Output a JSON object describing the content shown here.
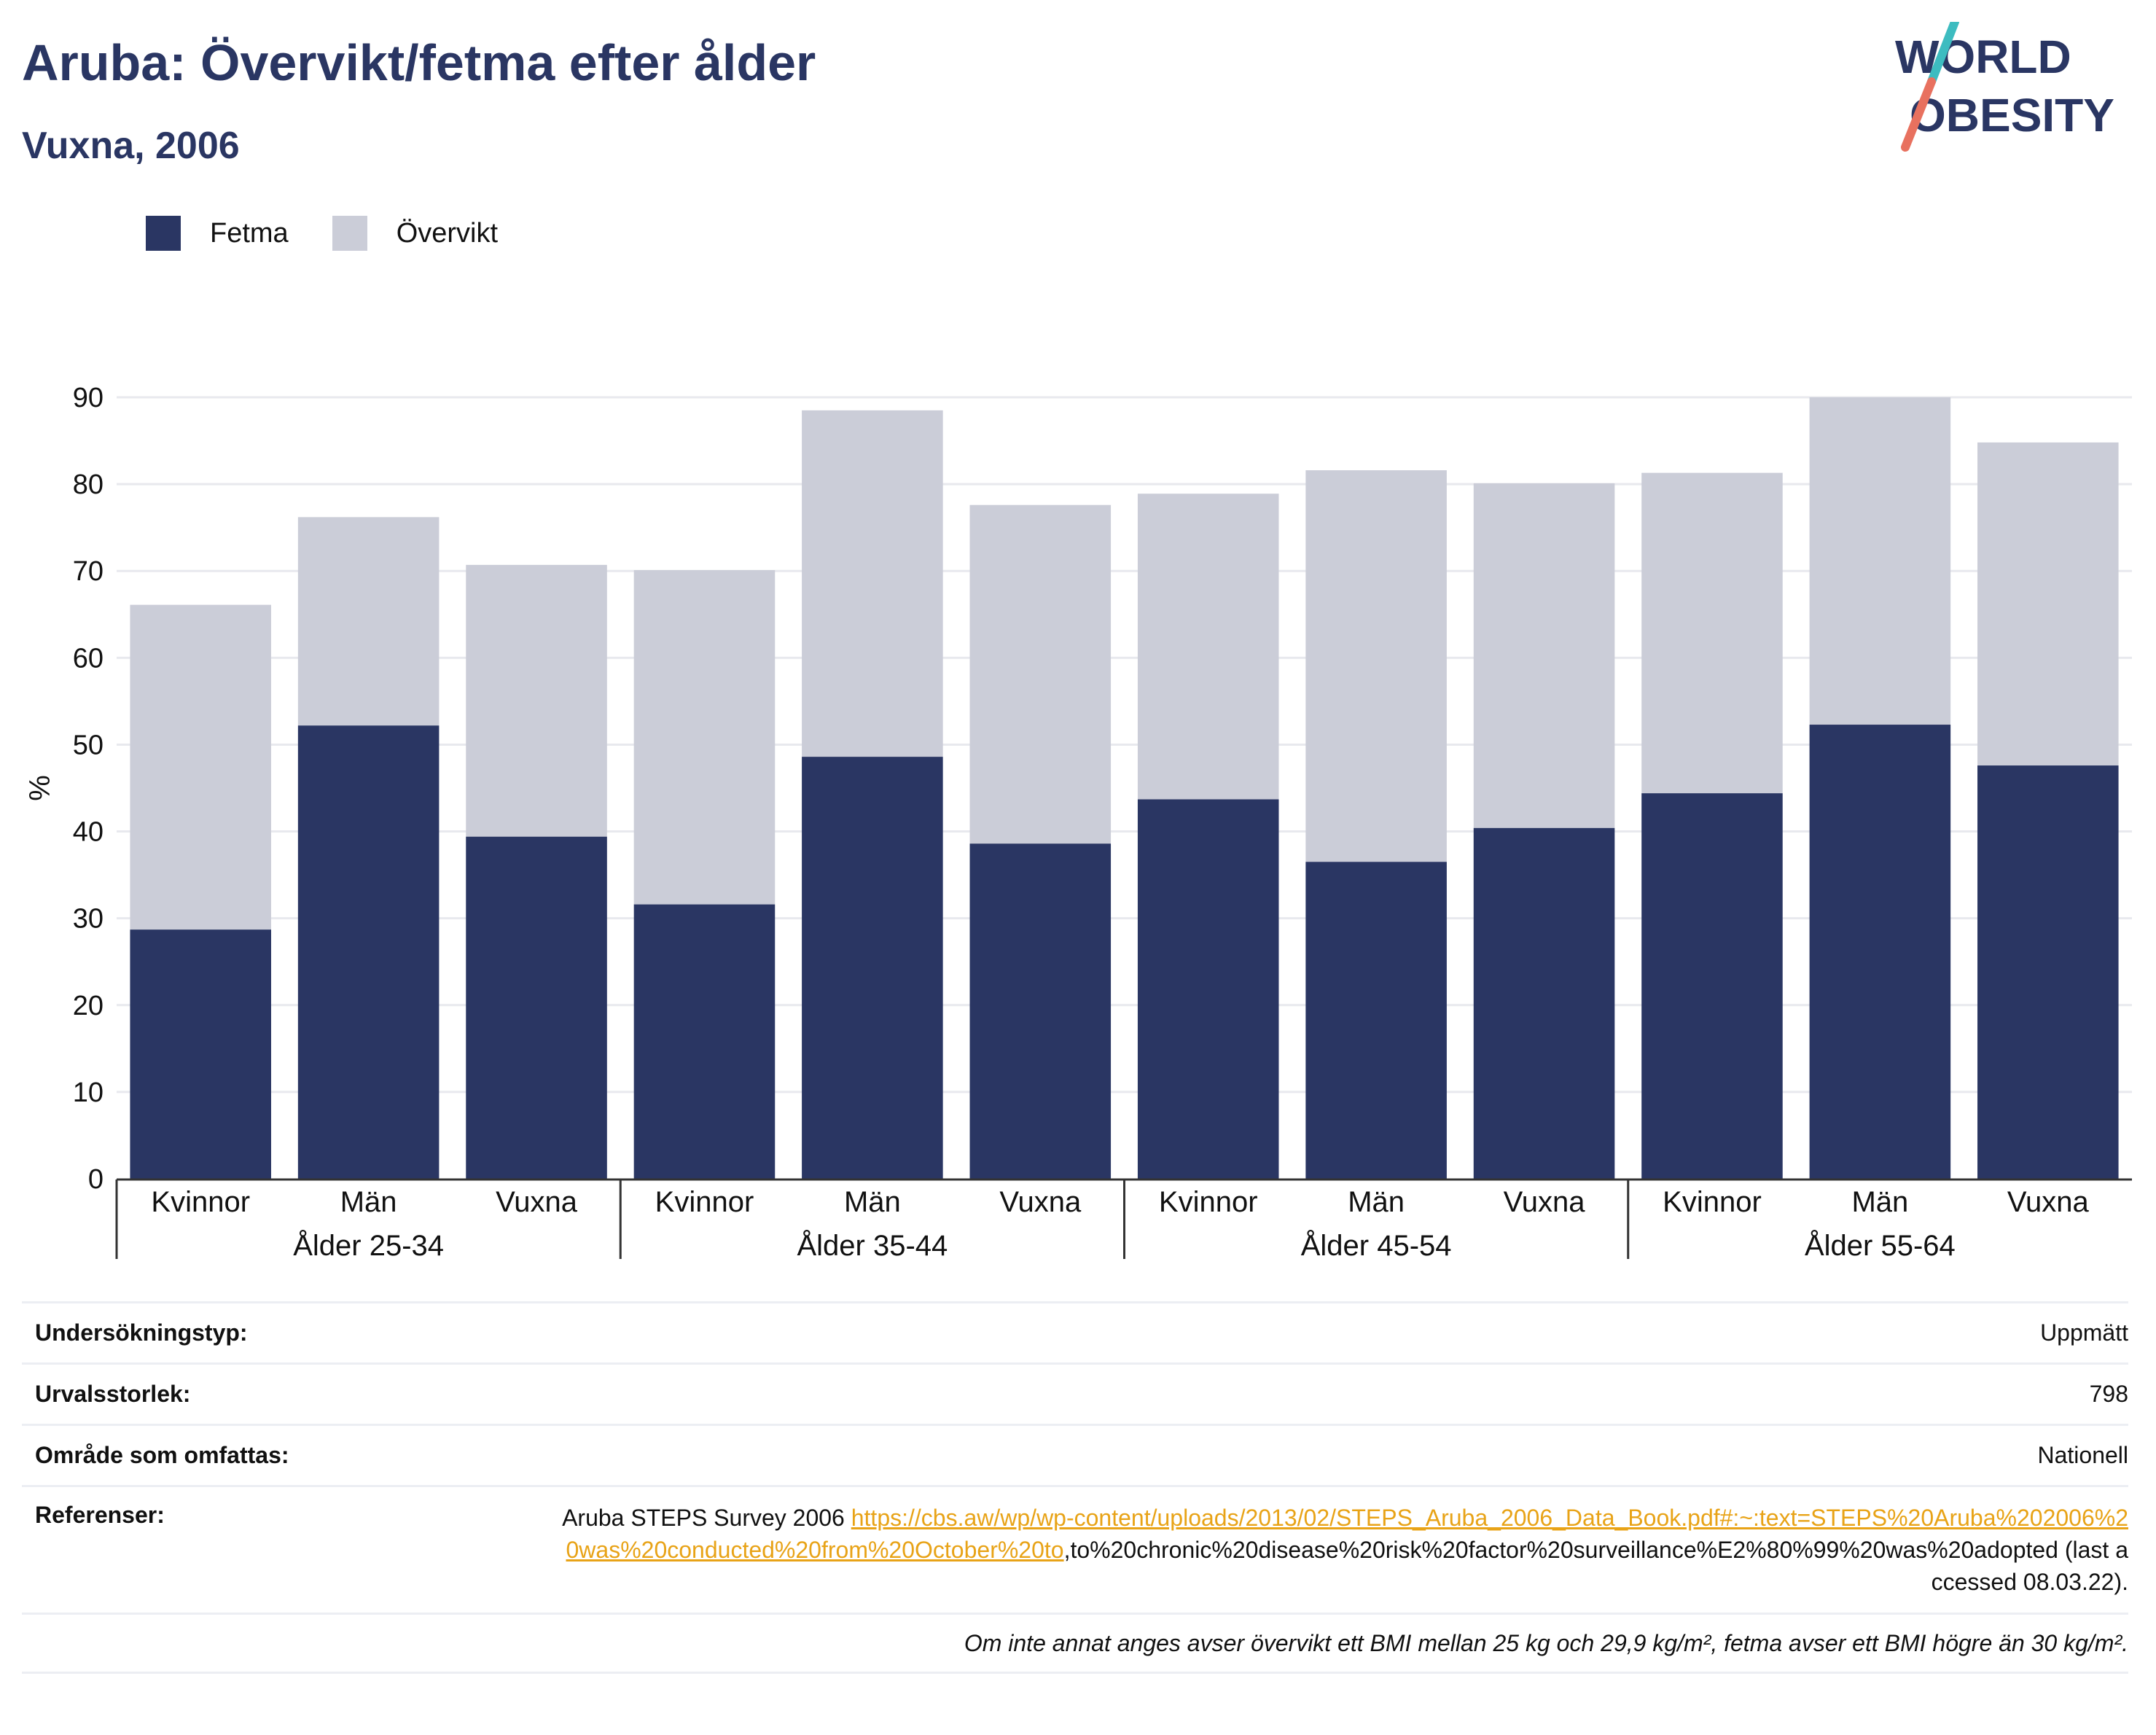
{
  "header": {
    "title": "Aruba: Övervikt/fetma efter ålder",
    "subtitle": "Vuxna, 2006"
  },
  "logo": {
    "line1": "WORLD",
    "line2": "OBESITY",
    "colors": {
      "text": "#2a3663",
      "slash_top": "#3dbcc0",
      "slash_bottom": "#e8715f"
    }
  },
  "colors": {
    "fetma": "#2a3663",
    "overvikt": "#cbcdd8",
    "axis": "#333333",
    "grid": "#e8e9ee",
    "link": "#e8a317"
  },
  "chart_data": {
    "type": "bar",
    "stacked": true,
    "ylabel": "%",
    "ylim": [
      0,
      90
    ],
    "yticks": [
      0,
      10,
      20,
      30,
      40,
      50,
      60,
      70,
      80,
      90
    ],
    "grid": true,
    "legend_position": "top-left",
    "groups": [
      {
        "label": "Ålder 25-34",
        "categories": [
          "Kvinnor",
          "Män",
          "Vuxna"
        ]
      },
      {
        "label": "Ålder 35-44",
        "categories": [
          "Kvinnor",
          "Män",
          "Vuxna"
        ]
      },
      {
        "label": "Ålder 45-54",
        "categories": [
          "Kvinnor",
          "Män",
          "Vuxna"
        ]
      },
      {
        "label": "Ålder 55-64",
        "categories": [
          "Kvinnor",
          "Män",
          "Vuxna"
        ]
      }
    ],
    "series": [
      {
        "name": "Fetma",
        "values": [
          28.7,
          52.2,
          39.4,
          31.6,
          48.6,
          38.6,
          43.7,
          36.5,
          40.4,
          44.4,
          52.3,
          47.6
        ]
      },
      {
        "name": "Övervikt",
        "values": [
          37.4,
          24.0,
          31.3,
          38.5,
          39.9,
          39.0,
          35.2,
          45.1,
          39.7,
          36.9,
          37.7,
          37.2
        ]
      }
    ]
  },
  "info": {
    "survey_type_label": "Undersökningstyp:",
    "survey_type_value": "Uppmätt",
    "sample_size_label": "Urvalsstorlek:",
    "sample_size_value": "798",
    "area_label": "Område som omfattas:",
    "area_value": "Nationell",
    "references_label": "Referenser:",
    "references_prefix": "Aruba STEPS Survey 2006 ",
    "references_link": "https://cbs.aw/wp/wp-content/uploads/2013/02/STEPS_Aruba_2006_Data_Book.pdf#:~:text=STEPS%20Aruba%202006%20was%20conducted%20from%20October%20to",
    "references_suffix": ",to%20chronic%20disease%20risk%20factor%20surveillance%E2%80%99%20was%20adopted (last accessed 08.03.22).",
    "note": "Om inte annat anges avser övervikt ett BMI mellan 25 kg och 29,9 kg/m², fetma avser ett BMI högre än 30 kg/m²."
  }
}
